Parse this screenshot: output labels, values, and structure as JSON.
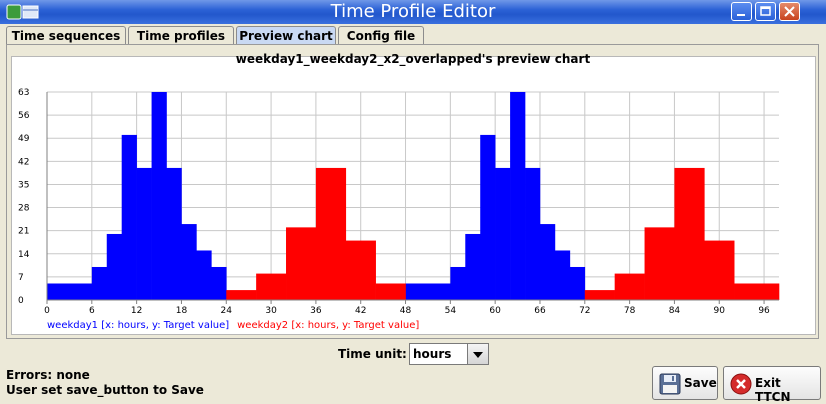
{
  "window": {
    "title": "Time Profile Editor",
    "title_bar_color": "#2257cc"
  },
  "tabs": [
    {
      "label": "Time sequences",
      "active": false
    },
    {
      "label": "Time profiles",
      "active": false
    },
    {
      "label": "Preview chart",
      "active": true
    },
    {
      "label": "Config file",
      "active": false
    }
  ],
  "chart_title": "weekday1_weekday2_x2_overlapped's preview chart",
  "chart_data": {
    "type": "bar",
    "xlim": [
      0,
      98
    ],
    "ylim": [
      0,
      63
    ],
    "x_ticks": [
      0,
      6,
      12,
      18,
      24,
      30,
      36,
      42,
      48,
      54,
      60,
      66,
      72,
      78,
      84,
      90,
      96
    ],
    "y_ticks": [
      0,
      7,
      14,
      21,
      28,
      35,
      42,
      49,
      56,
      63
    ],
    "grid": true,
    "legend_position": "bottom-left",
    "series": [
      {
        "name": "weekday1 [x: hours, y: Target value]",
        "color": "#0000ff",
        "bars": [
          [
            0,
            6,
            5
          ],
          [
            6,
            8,
            10
          ],
          [
            8,
            10,
            20
          ],
          [
            10,
            12,
            50
          ],
          [
            12,
            14,
            40
          ],
          [
            14,
            16,
            63
          ],
          [
            16,
            18,
            40
          ],
          [
            18,
            20,
            23
          ],
          [
            20,
            22,
            15
          ],
          [
            22,
            24,
            10
          ],
          [
            48,
            54,
            5
          ],
          [
            54,
            56,
            10
          ],
          [
            56,
            58,
            20
          ],
          [
            58,
            60,
            50
          ],
          [
            60,
            62,
            40
          ],
          [
            62,
            64,
            63
          ],
          [
            64,
            66,
            40
          ],
          [
            66,
            68,
            23
          ],
          [
            68,
            70,
            15
          ],
          [
            70,
            72,
            10
          ]
        ]
      },
      {
        "name": "weekday2 [x: hours, y: Target value]",
        "color": "#ff0000",
        "bars": [
          [
            24,
            28,
            3
          ],
          [
            28,
            32,
            8
          ],
          [
            32,
            36,
            22
          ],
          [
            36,
            40,
            40
          ],
          [
            40,
            44,
            18
          ],
          [
            44,
            48,
            5
          ],
          [
            72,
            76,
            3
          ],
          [
            76,
            80,
            8
          ],
          [
            80,
            84,
            22
          ],
          [
            84,
            88,
            40
          ],
          [
            88,
            92,
            18
          ],
          [
            92,
            98,
            5
          ]
        ]
      }
    ]
  },
  "time_unit": {
    "label": "Time unit:",
    "value": "hours"
  },
  "status": {
    "errors": "Errors: none",
    "message": "User set save_button to Save"
  },
  "buttons": {
    "save": "Save",
    "exit": "Exit TTCN"
  }
}
